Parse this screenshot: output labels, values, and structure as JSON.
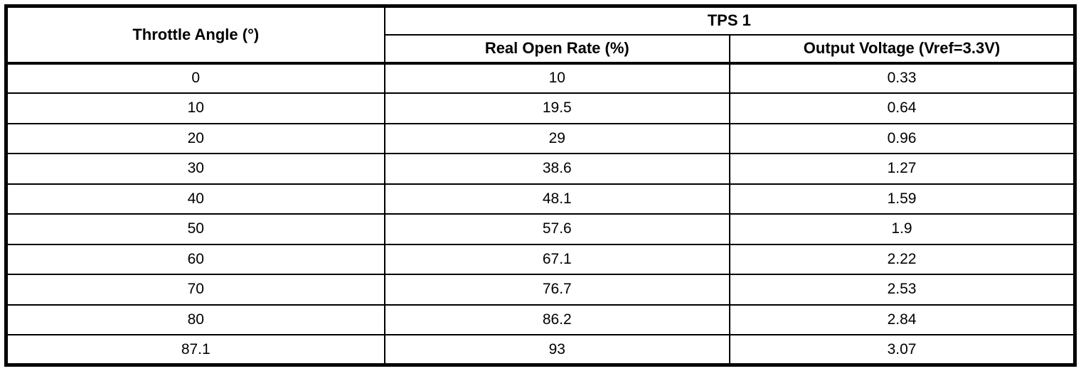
{
  "table": {
    "col1_header": "Throttle Angle (°)",
    "group_header": "TPS 1",
    "sub_headers": [
      "Real Open Rate (%)",
      "Output Voltage (Vref=3.3V)"
    ],
    "rows": [
      [
        "0",
        "10",
        "0.33"
      ],
      [
        "10",
        "19.5",
        "0.64"
      ],
      [
        "20",
        "29",
        "0.96"
      ],
      [
        "30",
        "38.6",
        "1.27"
      ],
      [
        "40",
        "48.1",
        "1.59"
      ],
      [
        "50",
        "57.6",
        "1.9"
      ],
      [
        "60",
        "67.1",
        "2.22"
      ],
      [
        "70",
        "76.7",
        "2.53"
      ],
      [
        "80",
        "86.2",
        "2.84"
      ],
      [
        "87.1",
        "93",
        "3.07"
      ]
    ],
    "cell_names": [
      "throttle-angle-cell",
      "real-open-rate-cell",
      "output-voltage-cell"
    ]
  }
}
